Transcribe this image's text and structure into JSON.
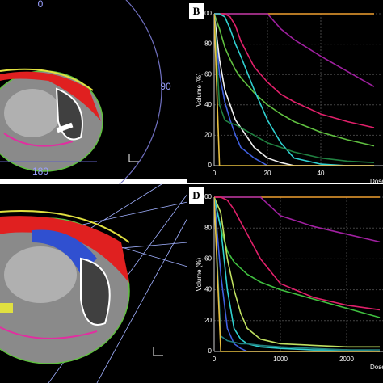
{
  "ct_images": [
    {
      "angle_labels": [
        "0",
        "90",
        "180"
      ]
    }
  ],
  "chart_data": [
    {
      "type": "line",
      "panel_label": "B",
      "ylabel": "Volume (%)",
      "xlabel": "Dose",
      "x": [
        0,
        2,
        4,
        6,
        8,
        10,
        15,
        20,
        25,
        30,
        40,
        50,
        60
      ],
      "xlim": [
        0,
        63
      ],
      "xticks": [
        0,
        20,
        40
      ],
      "ylim": [
        0,
        100
      ],
      "yticks": [
        0,
        20,
        40,
        60,
        80,
        100
      ],
      "grid": true,
      "series": [
        {
          "color": "#f0a030",
          "values": [
            100,
            100,
            100,
            100,
            100,
            100,
            100,
            100,
            100,
            100,
            100,
            100,
            100
          ]
        },
        {
          "color": "#a020a0",
          "values": [
            100,
            100,
            100,
            100,
            100,
            100,
            100,
            100,
            90,
            83,
            72,
            62,
            52
          ]
        },
        {
          "color": "#e0206a",
          "values": [
            100,
            100,
            100,
            98,
            92,
            82,
            65,
            55,
            47,
            42,
            34,
            29,
            25
          ]
        },
        {
          "color": "#60c040",
          "values": [
            100,
            90,
            78,
            70,
            63,
            58,
            48,
            40,
            34,
            29,
            22,
            17,
            13
          ]
        },
        {
          "color": "#30d0d0",
          "values": [
            100,
            100,
            98,
            90,
            80,
            72,
            50,
            30,
            15,
            5,
            1,
            0,
            0
          ]
        },
        {
          "color": "#4060e0",
          "values": [
            100,
            60,
            42,
            30,
            20,
            12,
            5,
            0,
            0,
            0,
            0,
            0,
            0
          ]
        },
        {
          "color": "#f0f0f0",
          "values": [
            100,
            70,
            50,
            40,
            30,
            25,
            12,
            5,
            2,
            0,
            0,
            0,
            0
          ]
        },
        {
          "color": "#208040",
          "values": [
            100,
            40,
            30,
            28,
            27,
            25,
            20,
            15,
            12,
            9,
            5,
            3,
            2
          ]
        },
        {
          "color": "#e8c040",
          "values": [
            100,
            0,
            0,
            0,
            0,
            0,
            0,
            0,
            0,
            0,
            0,
            0,
            0
          ]
        }
      ]
    },
    {
      "type": "line",
      "panel_label": "D",
      "ylabel": "Volume (%)",
      "xlabel": "Dose",
      "x": [
        0,
        100,
        200,
        300,
        400,
        500,
        700,
        1000,
        1500,
        2000,
        2500
      ],
      "xlim": [
        0,
        2550
      ],
      "xticks": [
        0,
        1000,
        2000
      ],
      "ylim": [
        0,
        100
      ],
      "yticks": [
        0,
        20,
        40,
        60,
        80,
        100
      ],
      "grid": true,
      "series": [
        {
          "color": "#f0a030",
          "values": [
            100,
            100,
            100,
            100,
            100,
            100,
            100,
            100,
            100,
            100,
            100
          ]
        },
        {
          "color": "#a020a0",
          "values": [
            100,
            100,
            100,
            100,
            100,
            100,
            100,
            88,
            81,
            76,
            71
          ]
        },
        {
          "color": "#e0206a",
          "values": [
            100,
            100,
            98,
            92,
            84,
            76,
            60,
            44,
            35,
            30,
            27
          ]
        },
        {
          "color": "#40c040",
          "values": [
            100,
            80,
            65,
            58,
            54,
            50,
            45,
            40,
            34,
            28,
            22
          ]
        },
        {
          "color": "#c0e060",
          "values": [
            100,
            90,
            60,
            40,
            25,
            15,
            8,
            5,
            4,
            3,
            3
          ]
        },
        {
          "color": "#30d0d0",
          "values": [
            100,
            80,
            40,
            15,
            8,
            5,
            3,
            2,
            1,
            1,
            0
          ]
        },
        {
          "color": "#4060e0",
          "values": [
            100,
            50,
            15,
            5,
            2,
            0,
            0,
            0,
            0,
            0,
            0
          ]
        },
        {
          "color": "#208080",
          "values": [
            100,
            10,
            7,
            6,
            5,
            5,
            4,
            3,
            2,
            1,
            1
          ]
        },
        {
          "color": "#e8c040",
          "values": [
            100,
            0,
            0,
            0,
            0,
            0,
            0,
            0,
            0,
            0,
            0
          ]
        }
      ]
    }
  ]
}
